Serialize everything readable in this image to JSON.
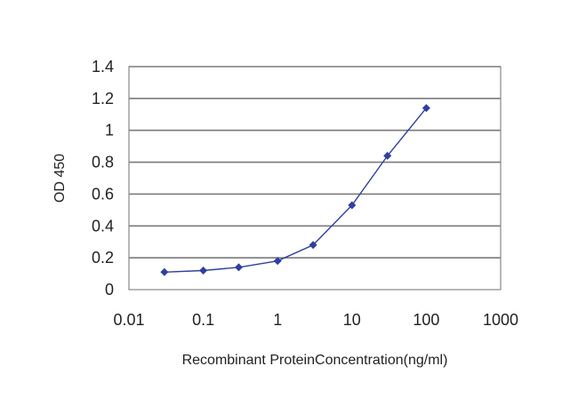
{
  "chart_data": {
    "type": "line",
    "title": "",
    "xlabel": "Recombinant ProteinConcentration(ng/ml)",
    "ylabel": "OD 450",
    "x_scale": "log",
    "xlim": [
      0.01,
      1000
    ],
    "ylim": [
      0,
      1.4
    ],
    "x_ticks": [
      "0.01",
      "0.1",
      "1",
      "10",
      "100",
      "1000"
    ],
    "y_ticks": [
      "0",
      "0.2",
      "0.4",
      "0.6",
      "0.8",
      "1",
      "1.2",
      "1.4"
    ],
    "grid": "horizontal",
    "series": [
      {
        "color": "#2f3f9e",
        "marker": "diamond",
        "x": [
          0.03,
          0.1,
          0.3,
          1,
          3,
          10,
          30,
          100
        ],
        "y": [
          0.11,
          0.12,
          0.14,
          0.18,
          0.28,
          0.53,
          0.84,
          1.14
        ]
      }
    ]
  }
}
